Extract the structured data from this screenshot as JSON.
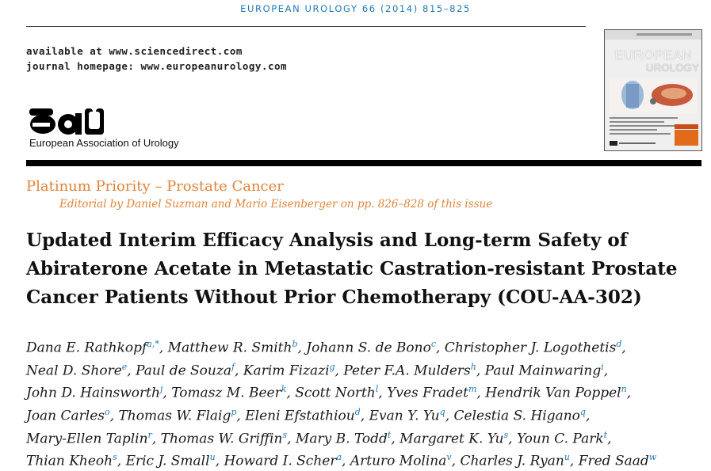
{
  "running_head": "EUROPEAN UROLOGY 66 (2014) 815–825",
  "availability": {
    "line1": "available at www.sciencedirect.com",
    "line2": "journal homepage: www.europeanurology.com"
  },
  "society": {
    "logo_text": "eau",
    "name": "European Association of Urology"
  },
  "cover": {
    "title_top": "EUROPEAN",
    "title_bottom": "UROLOGY"
  },
  "category": "Platinum Priority – Prostate Cancer",
  "editorial": "Editorial by Daniel Suzman and Mario Eisenberger on pp. 826–828 of this issue",
  "title_lines": [
    "Updated Interim Efficacy Analysis and Long-term Safety of",
    "Abiraterone Acetate in Metastatic Castration-resistant Prostate",
    "Cancer Patients Without Prior Chemotherapy (COU-AA-302)"
  ],
  "author_lines": [
    [
      {
        "name": "Dana E. Rathkopf",
        "sup": "a,*"
      },
      {
        "name": "Matthew R. Smith",
        "sup": "b"
      },
      {
        "name": "Johann S. de Bono",
        "sup": "c"
      },
      {
        "name": "Christopher J. Logothetis",
        "sup": "d"
      }
    ],
    [
      {
        "name": "Neal D. Shore",
        "sup": "e"
      },
      {
        "name": "Paul de Souza",
        "sup": "f"
      },
      {
        "name": "Karim Fizazi",
        "sup": "g"
      },
      {
        "name": "Peter F.A. Mulders",
        "sup": "h"
      },
      {
        "name": "Paul Mainwaring",
        "sup": "i"
      }
    ],
    [
      {
        "name": "John D. Hainsworth",
        "sup": "j"
      },
      {
        "name": "Tomasz M. Beer",
        "sup": "k"
      },
      {
        "name": "Scott North",
        "sup": "l"
      },
      {
        "name": "Yves Fradet",
        "sup": "m"
      },
      {
        "name": "Hendrik Van Poppel",
        "sup": "n"
      }
    ],
    [
      {
        "name": "Joan Carles",
        "sup": "o"
      },
      {
        "name": "Thomas W. Flaig",
        "sup": "p"
      },
      {
        "name": "Eleni Efstathiou",
        "sup": "d"
      },
      {
        "name": "Evan Y. Yu",
        "sup": "q"
      },
      {
        "name": "Celestia S. Higano",
        "sup": "q"
      }
    ],
    [
      {
        "name": "Mary-Ellen Taplin",
        "sup": "r"
      },
      {
        "name": "Thomas W. Griffin",
        "sup": "s"
      },
      {
        "name": "Mary B. Todd",
        "sup": "t"
      },
      {
        "name": "Margaret K. Yu",
        "sup": "s"
      },
      {
        "name": "Youn C. Park",
        "sup": "t"
      }
    ],
    [
      {
        "name": "Thian Kheoh",
        "sup": "s"
      },
      {
        "name": "Eric J. Small",
        "sup": "u"
      },
      {
        "name": "Howard I. Scher",
        "sup": "a"
      },
      {
        "name": "Arturo Molina",
        "sup": "v"
      },
      {
        "name": "Charles J. Ryan",
        "sup": "u"
      },
      {
        "name": "Fred Saad",
        "sup": "w"
      }
    ]
  ]
}
